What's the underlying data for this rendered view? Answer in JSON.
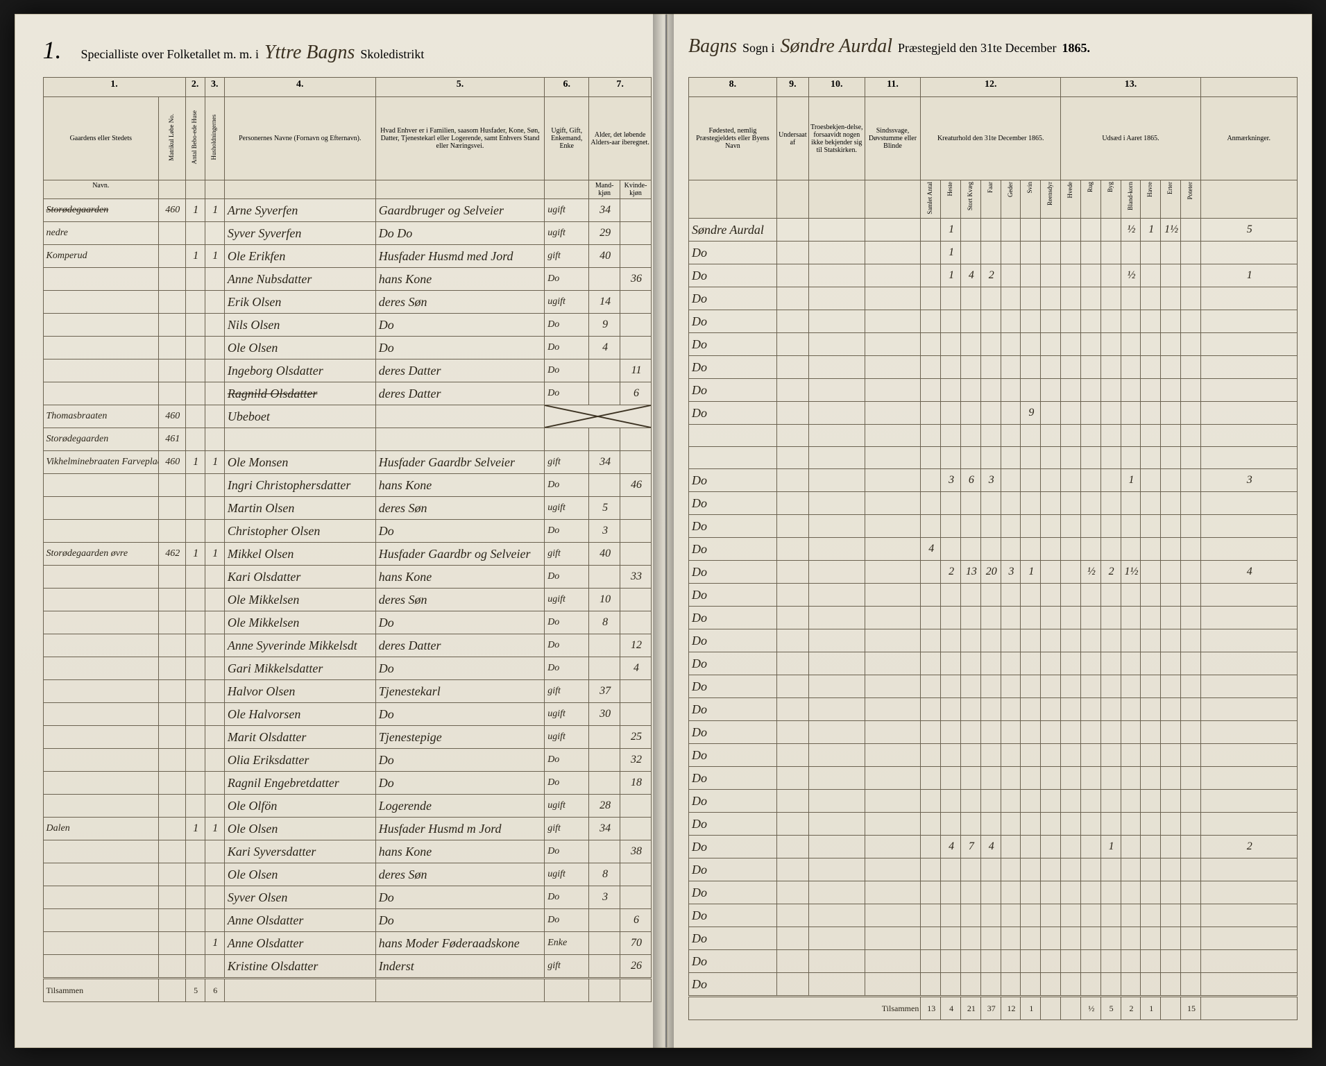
{
  "header": {
    "page_number": "1.",
    "left_printed_1": "Specialliste over Folketallet m. m. i",
    "left_hand_1": "Yttre Bagns",
    "left_printed_2": "Skoledistrikt",
    "right_hand_1": "Bagns",
    "right_printed_1": "Sogn i",
    "right_hand_2": "Søndre Aurdal",
    "right_printed_2": "Præstegjeld den 31te December",
    "year": "1865."
  },
  "columns_left": {
    "c1": "1.",
    "c2": "2.",
    "c3": "3.",
    "c4": "4.",
    "c5": "5.",
    "c6": "6.",
    "c7": "7.",
    "h1": "Gaardens eller Stedets",
    "h1a": "Navn.",
    "h1b": "Matrikul Løbe No.",
    "h2": "Antal Bebo-ede Huse",
    "h3": "Husholdningernes",
    "h4": "Personernes Navne (Fornavn og Efternavn).",
    "h5": "Hvad Enhver er i Familien, saasom Husfader, Kone, Søn, Datter, Tjenestekarl eller Logerende, samt Enhvers Stand eller Næringsvei.",
    "h6": "Ugift, Gift, Enkemand, Enke",
    "h7": "Alder, det løbende Alders-aar iberegnet.",
    "h7a": "Mand-kjøn",
    "h7b": "Kvinde-kjøn"
  },
  "columns_right": {
    "c8": "8.",
    "c9": "9.",
    "c10": "10.",
    "c11": "11.",
    "c12": "12.",
    "c13": "13.",
    "h8": "Fødested, nemlig Præstegjeldets eller Byens Navn",
    "h9": "Undersaat af",
    "h10": "Troesbekjen-delse, forsaavidt nogen ikke bekjender sig til Statskirken.",
    "h11": "Sindssvage, Døvstumme eller Blinde",
    "h12": "Kreaturhold den 31te December 1865.",
    "h12_sub": [
      "Samlet Antal",
      "Heste",
      "Stort Kvæg",
      "Faar",
      "Geder",
      "Svin",
      "Reensdyr"
    ],
    "h13": "Udsæd i Aaret 1865.",
    "h13_sub": [
      "Hvede",
      "Rug",
      "Byg",
      "Bland-korn",
      "Havre",
      "Erter",
      "Poteter"
    ],
    "h14": "Anmærkninger."
  },
  "rows": [
    {
      "gaard": "Storødegaarden",
      "strike": true,
      "lnr": "460",
      "hus": "1",
      "hh": "1",
      "navn": "Arne Syverfen",
      "fam": "Gaardbruger og Selveier",
      "giv": "ugift",
      "m": "34",
      "k": "",
      "fod": "Søndre Aurdal",
      "kr": [
        "",
        "1",
        "",
        "",
        "",
        "",
        ""
      ],
      "ud": [
        "",
        "",
        "",
        "½",
        "1",
        "1½",
        "",
        "5"
      ]
    },
    {
      "gaard": "nedre",
      "navn": "Syver Syverfen",
      "fam": "Do       Do",
      "giv": "ugift",
      "m": "29",
      "k": "",
      "fod": "Do",
      "kr": [
        "",
        "1",
        "",
        "",
        "",
        "",
        ""
      ]
    },
    {
      "gaard": "Komperud",
      "hus": "1",
      "hh": "1",
      "navn": "Ole Erikfen",
      "fam": "Husfader Husmd med Jord",
      "giv": "gift",
      "m": "40",
      "k": "",
      "fod": "Do",
      "kr": [
        "",
        "1",
        "4",
        "2",
        "",
        "",
        ""
      ],
      "ud": [
        "",
        "",
        "",
        "½",
        "",
        "",
        "",
        "1"
      ]
    },
    {
      "navn": "Anne Nubsdatter",
      "fam": "hans Kone",
      "giv": "Do",
      "m": "",
      "k": "36",
      "fod": "Do"
    },
    {
      "navn": "Erik Olsen",
      "fam": "deres Søn",
      "giv": "ugift",
      "m": "14",
      "k": "",
      "fod": "Do"
    },
    {
      "navn": "Nils Olsen",
      "fam": "Do",
      "giv": "Do",
      "m": "9",
      "k": "",
      "fod": "Do"
    },
    {
      "navn": "Ole Olsen",
      "fam": "Do",
      "giv": "Do",
      "m": "4",
      "k": "",
      "fod": "Do"
    },
    {
      "navn": "Ingeborg Olsdatter",
      "fam": "deres Datter",
      "giv": "Do",
      "m": "",
      "k": "11",
      "fod": "Do"
    },
    {
      "navn": "Ragnild Olsdatter",
      "strike": true,
      "fam": "deres Datter",
      "giv": "Do",
      "m": "",
      "k": "6",
      "fod": "Do",
      "kr": [
        "",
        "",
        "",
        "",
        "",
        "9",
        ""
      ]
    },
    {
      "gaard": "Thomasbraaten",
      "lnr": "460",
      "navn": "Ubeboet",
      "cross": true
    },
    {
      "gaard": "Storødegaarden",
      "lnr": "461"
    },
    {
      "gaard": "Vikhelminebraaten Farveplads",
      "lnr": "460",
      "hus": "1",
      "hh": "1",
      "navn": "Ole Monsen",
      "fam": "Husfader Gaardbr Selveier",
      "giv": "gift",
      "m": "34",
      "k": "",
      "fod": "Do",
      "kr": [
        "",
        "3",
        "6",
        "3",
        "",
        "",
        ""
      ],
      "ud": [
        "",
        "",
        "",
        "1",
        "",
        "",
        "",
        "3"
      ]
    },
    {
      "navn": "Ingri Christophersdatter",
      "fam": "hans Kone",
      "giv": "Do",
      "m": "",
      "k": "46",
      "fod": "Do"
    },
    {
      "navn": "Martin Olsen",
      "fam": "deres Søn",
      "giv": "ugift",
      "m": "5",
      "k": "",
      "fod": "Do"
    },
    {
      "navn": "Christopher Olsen",
      "fam": "Do",
      "giv": "Do",
      "m": "3",
      "k": "",
      "fod": "Do",
      "kr": [
        "4",
        "",
        "",
        "",
        "",
        "",
        ""
      ]
    },
    {
      "gaard": "Storødegaarden øvre",
      "lnr": "462",
      "hus": "1",
      "hh": "1",
      "navn": "Mikkel Olsen",
      "fam": "Husfader Gaardbr og Selveier",
      "giv": "gift",
      "m": "40",
      "k": "",
      "fod": "Do",
      "kr": [
        "",
        "2",
        "13",
        "20",
        "3",
        "1",
        ""
      ],
      "ud": [
        "",
        "½",
        "2",
        "1½",
        "",
        "",
        "",
        "4"
      ]
    },
    {
      "navn": "Kari Olsdatter",
      "fam": "hans Kone",
      "giv": "Do",
      "m": "",
      "k": "33",
      "fod": "Do"
    },
    {
      "navn": "Ole Mikkelsen",
      "fam": "deres Søn",
      "giv": "ugift",
      "m": "10",
      "k": "",
      "fod": "Do"
    },
    {
      "navn": "Ole Mikkelsen",
      "fam": "Do",
      "giv": "Do",
      "m": "8",
      "k": "",
      "fod": "Do"
    },
    {
      "navn": "Anne Syverinde Mikkelsdt",
      "fam": "deres Datter",
      "giv": "Do",
      "m": "",
      "k": "12",
      "fod": "Do"
    },
    {
      "navn": "Gari Mikkelsdatter",
      "fam": "Do",
      "giv": "Do",
      "m": "",
      "k": "4",
      "fod": "Do"
    },
    {
      "navn": "Halvor Olsen",
      "fam": "Tjenestekarl",
      "giv": "gift",
      "m": "37",
      "k": "",
      "fod": "Do"
    },
    {
      "navn": "Ole Halvorsen",
      "fam": "Do",
      "giv": "ugift",
      "m": "30",
      "k": "",
      "fod": "Do"
    },
    {
      "navn": "Marit Olsdatter",
      "fam": "Tjenestepige",
      "giv": "ugift",
      "m": "",
      "k": "25",
      "fod": "Do"
    },
    {
      "navn": "Olia Eriksdatter",
      "fam": "Do",
      "giv": "Do",
      "m": "",
      "k": "32",
      "fod": "Do"
    },
    {
      "navn": "Ragnil Engebretdatter",
      "fam": "Do",
      "giv": "Do",
      "m": "",
      "k": "18",
      "fod": "Do"
    },
    {
      "navn": "Ole Olfön",
      "fam": "Logerende",
      "giv": "ugift",
      "m": "28",
      "k": "",
      "fod": "Do"
    },
    {
      "gaard": "Dalen",
      "hus": "1",
      "hh": "1",
      "navn": "Ole Olsen",
      "fam": "Husfader Husmd m Jord",
      "giv": "gift",
      "m": "34",
      "k": "",
      "fod": "Do",
      "kr": [
        "",
        "4",
        "7",
        "4",
        "",
        "",
        ""
      ],
      "ud": [
        "",
        "",
        "1",
        "",
        "",
        "",
        "",
        "2"
      ]
    },
    {
      "navn": "Kari Syversdatter",
      "fam": "hans Kone",
      "giv": "Do",
      "m": "",
      "k": "38",
      "fod": "Do"
    },
    {
      "navn": "Ole Olsen",
      "fam": "deres Søn",
      "giv": "ugift",
      "m": "8",
      "k": "",
      "fod": "Do"
    },
    {
      "navn": "Syver Olsen",
      "fam": "Do",
      "giv": "Do",
      "m": "3",
      "k": "",
      "fod": "Do"
    },
    {
      "navn": "Anne Olsdatter",
      "fam": "Do",
      "giv": "Do",
      "m": "",
      "k": "6",
      "fod": "Do"
    },
    {
      "hh": "1",
      "navn": "Anne Olsdatter",
      "fam": "hans Moder Føderaadskone",
      "giv": "Enke",
      "m": "",
      "k": "70",
      "fod": "Do"
    },
    {
      "navn": "Kristine Olsdatter",
      "fam": "Inderst",
      "giv": "gift",
      "m": "",
      "k": "26",
      "fod": "Do"
    }
  ],
  "footer": {
    "label": "Tilsammen",
    "left_sum": [
      "5",
      "6"
    ],
    "right_sum": [
      "13",
      "4",
      "21",
      "37",
      "12",
      "1",
      "",
      "",
      "½",
      "5",
      "2",
      "1",
      "",
      "15"
    ]
  }
}
